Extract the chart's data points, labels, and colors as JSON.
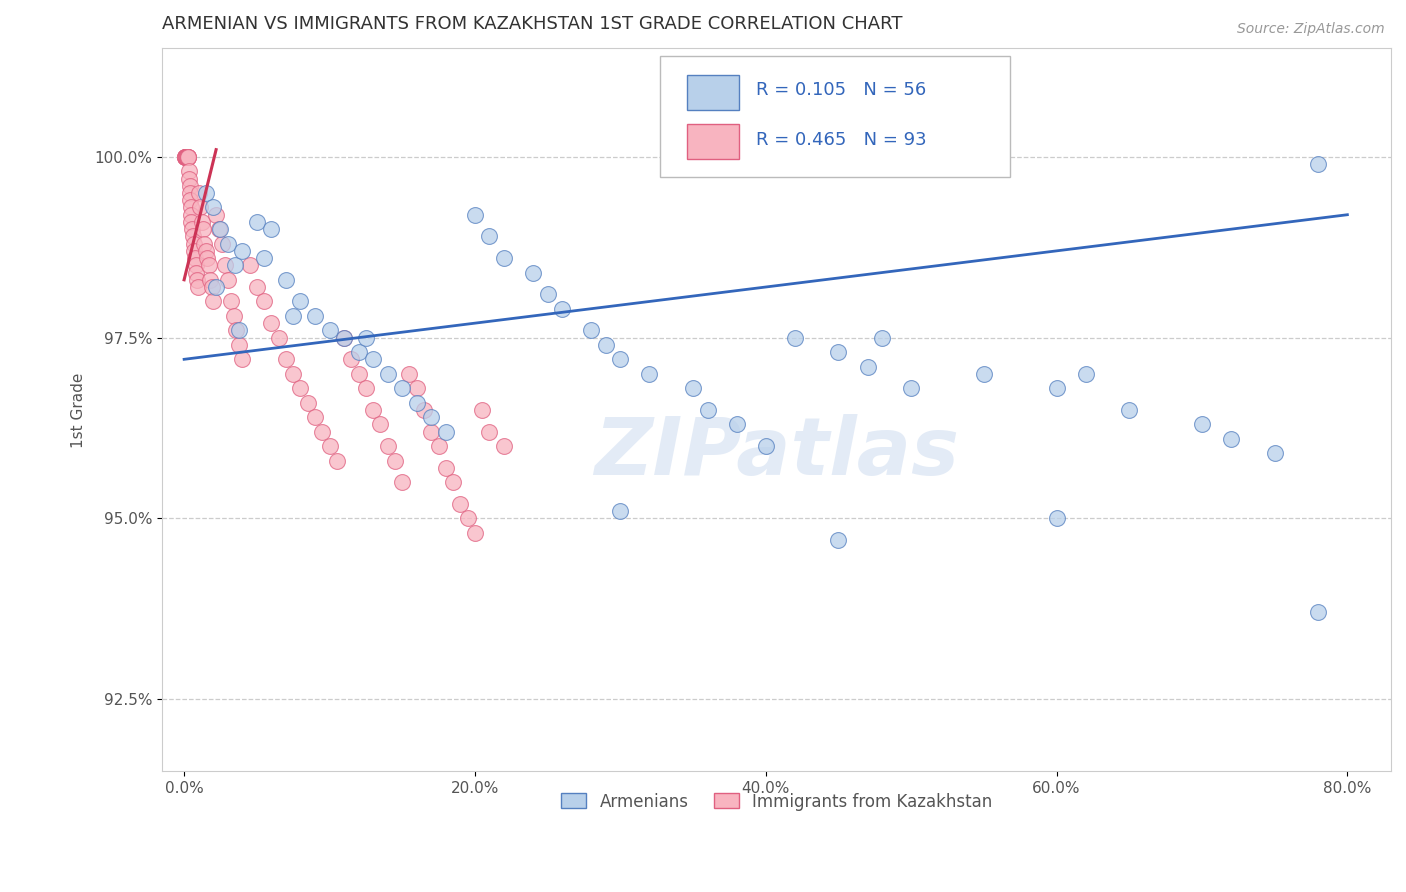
{
  "title": "ARMENIAN VS IMMIGRANTS FROM KAZAKHSTAN 1ST GRADE CORRELATION CHART",
  "source_text": "Source: ZipAtlas.com",
  "ylabel": "1st Grade",
  "x_ticks": [
    0.0,
    20.0,
    40.0,
    60.0,
    80.0
  ],
  "x_tick_labels": [
    "0.0%",
    "20.0%",
    "40.0%",
    "60.0%",
    "80.0%"
  ],
  "y_ticks": [
    92.5,
    95.0,
    97.5,
    100.0
  ],
  "y_tick_labels": [
    "92.5%",
    "95.0%",
    "97.5%",
    "100.0%"
  ],
  "xlim": [
    -1.5,
    83
  ],
  "ylim": [
    91.5,
    101.5
  ],
  "blue_color": "#b8d0ea",
  "pink_color": "#f8b4c0",
  "blue_edge_color": "#5580c0",
  "pink_edge_color": "#e06080",
  "blue_line_color": "#3366bb",
  "pink_line_color": "#cc3355",
  "legend_R_blue": "R = 0.105",
  "legend_N_blue": "N = 56",
  "legend_R_pink": "R = 0.465",
  "legend_N_pink": "N = 93",
  "legend_label_blue": "Armenians",
  "legend_label_pink": "Immigrants from Kazakhstan",
  "watermark": "ZIPatlas",
  "grid_color": "#cccccc",
  "title_color": "#333333",
  "axis_label_color": "#555555",
  "tick_color": "#555555",
  "blue_scatter_x": [
    1.5,
    2.0,
    2.5,
    3.0,
    3.5,
    4.0,
    5.0,
    5.5,
    6.0,
    7.0,
    8.0,
    9.0,
    10.0,
    11.0,
    12.0,
    13.0,
    14.0,
    15.0,
    16.0,
    17.0,
    18.0,
    20.0,
    21.0,
    22.0,
    24.0,
    25.0,
    26.0,
    28.0,
    29.0,
    30.0,
    32.0,
    35.0,
    36.0,
    38.0,
    40.0,
    42.0,
    45.0,
    47.0,
    48.0,
    50.0,
    55.0,
    60.0,
    62.0,
    65.0,
    70.0,
    72.0,
    75.0,
    78.0,
    2.2,
    3.8,
    7.5,
    12.5,
    30.0,
    45.0,
    60.0,
    78.0
  ],
  "blue_scatter_y": [
    99.5,
    99.3,
    99.0,
    98.8,
    98.5,
    98.7,
    99.1,
    98.6,
    99.0,
    98.3,
    98.0,
    97.8,
    97.6,
    97.5,
    97.3,
    97.2,
    97.0,
    96.8,
    96.6,
    96.4,
    96.2,
    99.2,
    98.9,
    98.6,
    98.4,
    98.1,
    97.9,
    97.6,
    97.4,
    97.2,
    97.0,
    96.8,
    96.5,
    96.3,
    96.0,
    97.5,
    97.3,
    97.1,
    97.5,
    96.8,
    97.0,
    96.8,
    97.0,
    96.5,
    96.3,
    96.1,
    95.9,
    99.9,
    98.2,
    97.6,
    97.8,
    97.5,
    95.1,
    94.7,
    95.0,
    93.7
  ],
  "pink_scatter_x": [
    0.05,
    0.07,
    0.08,
    0.09,
    0.1,
    0.11,
    0.12,
    0.13,
    0.14,
    0.15,
    0.16,
    0.17,
    0.18,
    0.19,
    0.2,
    0.22,
    0.24,
    0.25,
    0.27,
    0.3,
    0.32,
    0.35,
    0.38,
    0.4,
    0.42,
    0.45,
    0.48,
    0.5,
    0.55,
    0.6,
    0.65,
    0.7,
    0.75,
    0.8,
    0.85,
    0.9,
    0.95,
    1.0,
    1.1,
    1.2,
    1.3,
    1.4,
    1.5,
    1.6,
    1.7,
    1.8,
    1.9,
    2.0,
    2.2,
    2.4,
    2.6,
    2.8,
    3.0,
    3.2,
    3.4,
    3.6,
    3.8,
    4.0,
    4.5,
    5.0,
    5.5,
    6.0,
    6.5,
    7.0,
    7.5,
    8.0,
    8.5,
    9.0,
    9.5,
    10.0,
    10.5,
    11.0,
    11.5,
    12.0,
    12.5,
    13.0,
    13.5,
    14.0,
    14.5,
    15.0,
    15.5,
    16.0,
    16.5,
    17.0,
    17.5,
    18.0,
    18.5,
    19.0,
    19.5,
    20.0,
    20.5,
    21.0,
    22.0
  ],
  "pink_scatter_y": [
    100.0,
    100.0,
    100.0,
    100.0,
    100.0,
    100.0,
    100.0,
    100.0,
    100.0,
    100.0,
    100.0,
    100.0,
    100.0,
    100.0,
    100.0,
    100.0,
    100.0,
    100.0,
    100.0,
    100.0,
    99.8,
    99.7,
    99.6,
    99.5,
    99.4,
    99.3,
    99.2,
    99.1,
    99.0,
    98.9,
    98.8,
    98.7,
    98.6,
    98.5,
    98.4,
    98.3,
    98.2,
    99.5,
    99.3,
    99.1,
    99.0,
    98.8,
    98.7,
    98.6,
    98.5,
    98.3,
    98.2,
    98.0,
    99.2,
    99.0,
    98.8,
    98.5,
    98.3,
    98.0,
    97.8,
    97.6,
    97.4,
    97.2,
    98.5,
    98.2,
    98.0,
    97.7,
    97.5,
    97.2,
    97.0,
    96.8,
    96.6,
    96.4,
    96.2,
    96.0,
    95.8,
    97.5,
    97.2,
    97.0,
    96.8,
    96.5,
    96.3,
    96.0,
    95.8,
    95.5,
    97.0,
    96.8,
    96.5,
    96.2,
    96.0,
    95.7,
    95.5,
    95.2,
    95.0,
    94.8,
    96.5,
    96.2,
    96.0
  ],
  "blue_trendline_x": [
    0.0,
    80.0
  ],
  "blue_trendline_y": [
    97.2,
    99.2
  ],
  "pink_trendline_x": [
    0.0,
    2.2
  ],
  "pink_trendline_y": [
    98.3,
    100.1
  ]
}
